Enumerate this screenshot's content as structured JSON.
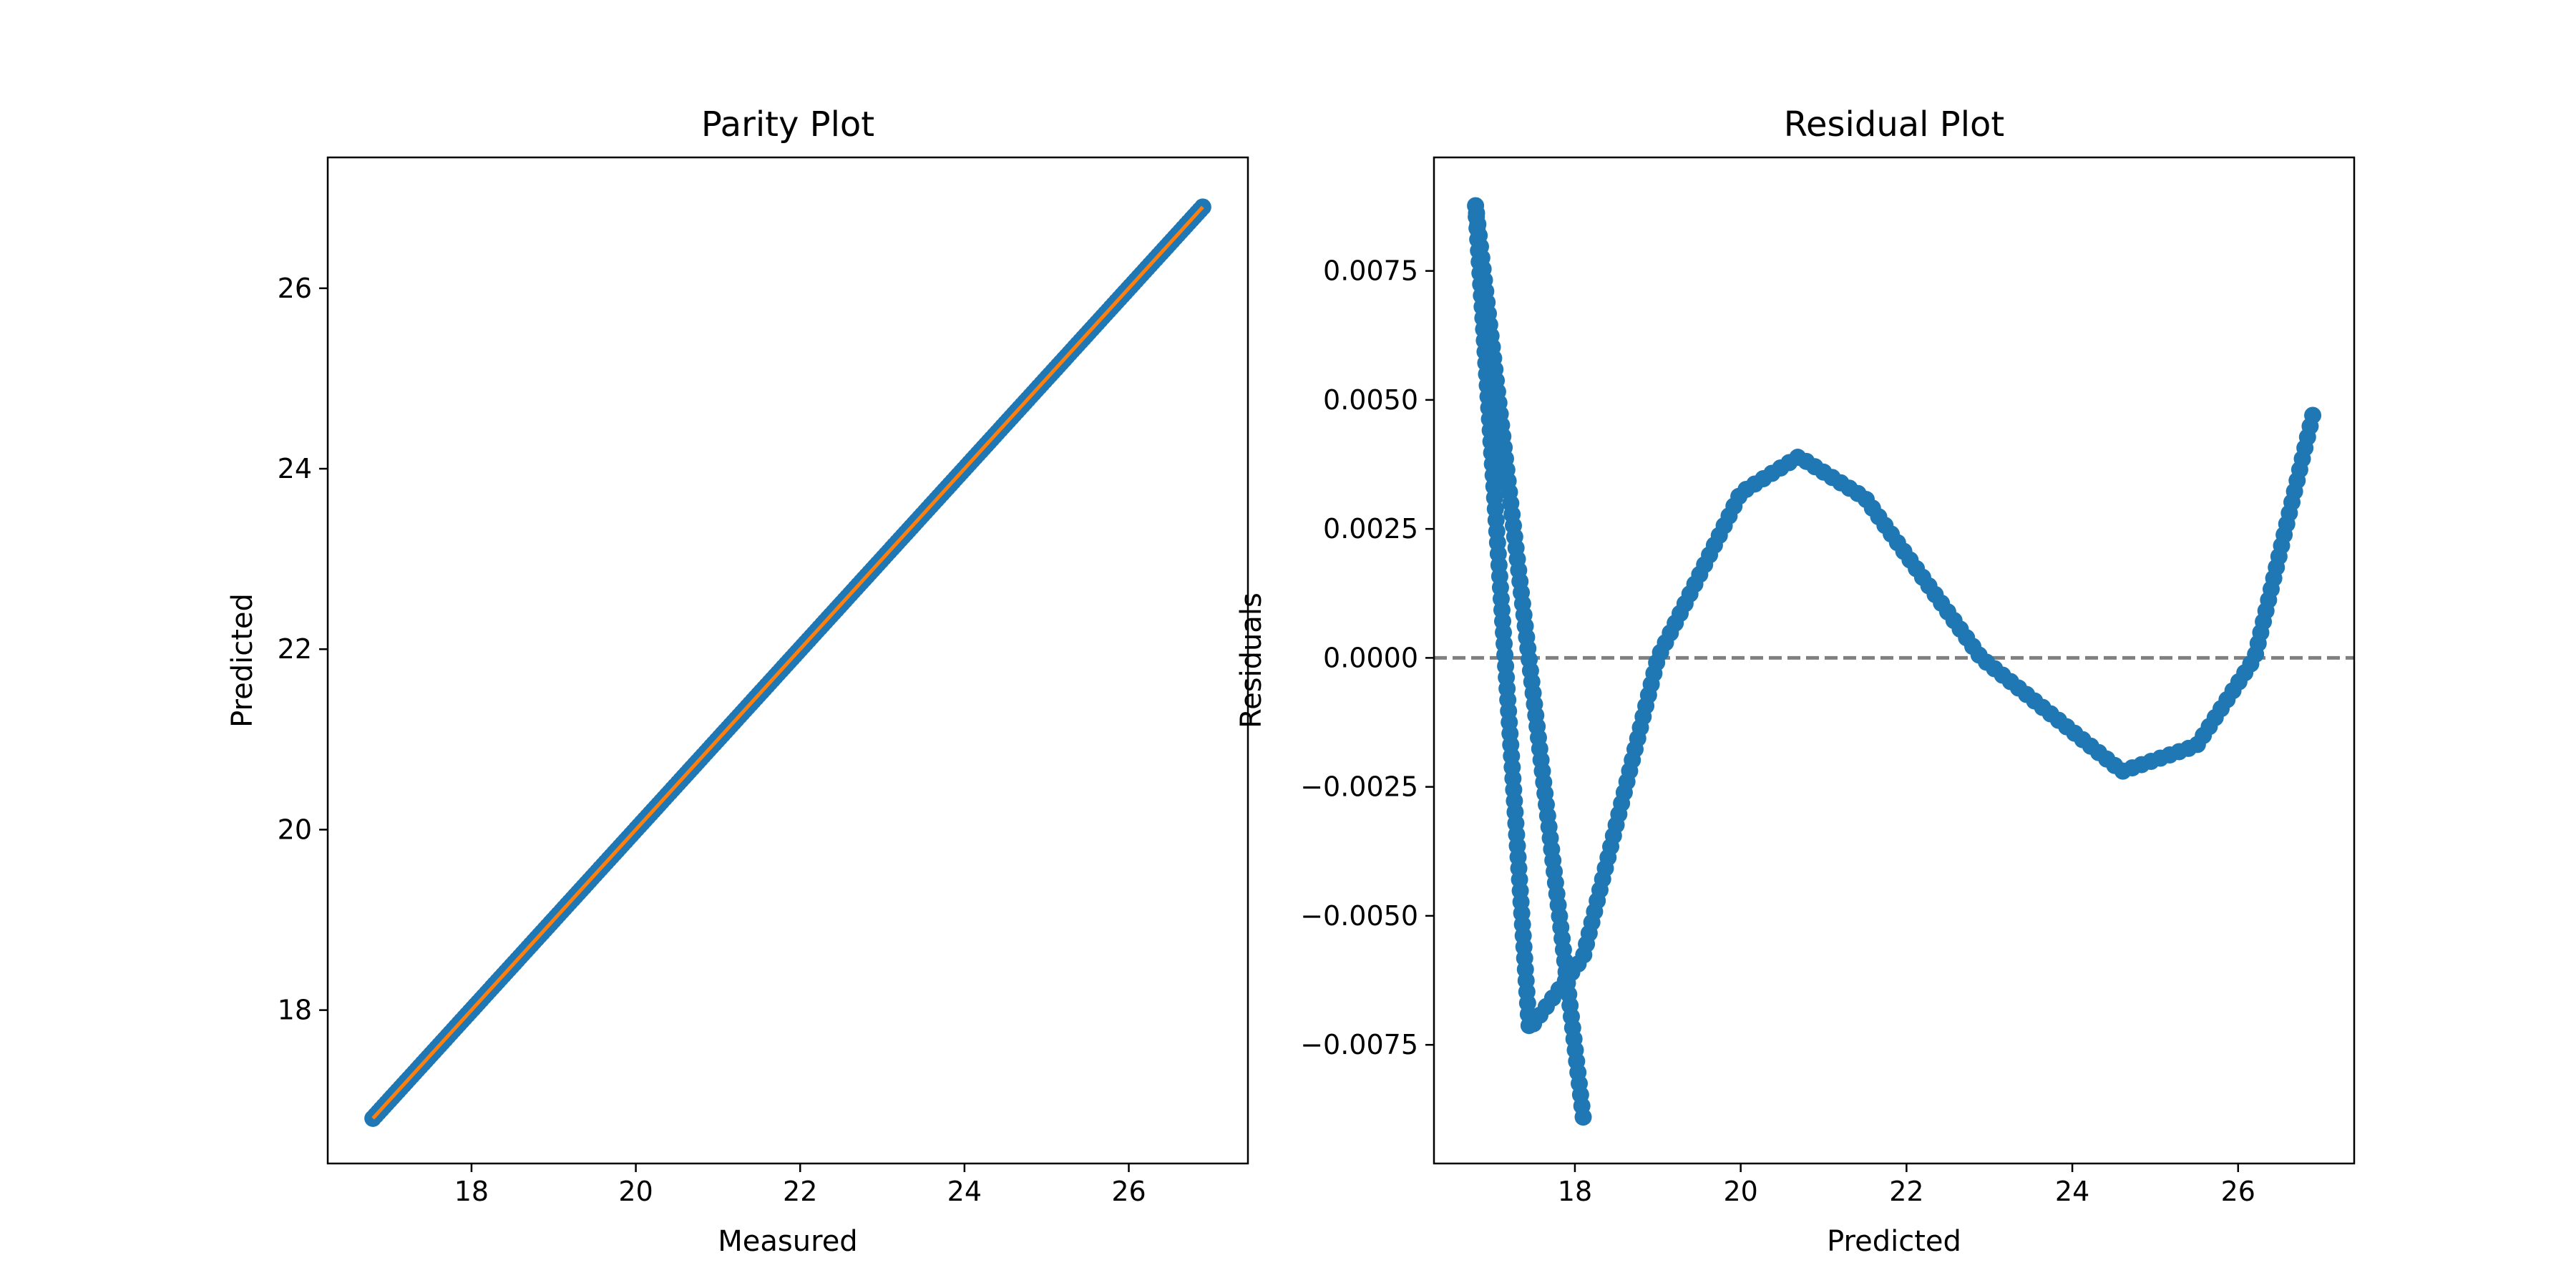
{
  "chart_data": [
    {
      "type": "scatter",
      "title": "Parity Plot",
      "xlabel": "Measured",
      "ylabel": "Predicted",
      "xlim": [
        16.25,
        27.45
      ],
      "ylim": [
        16.3,
        27.45
      ],
      "xticks": [
        18,
        20,
        22,
        24,
        26
      ],
      "xtick_labels": [
        "18",
        "20",
        "22",
        "24",
        "26"
      ],
      "yticks": [
        18,
        20,
        22,
        24,
        26
      ],
      "ytick_labels": [
        "18",
        "20",
        "22",
        "24",
        "26"
      ],
      "grid": false,
      "series": [
        {
          "kind": "scatter",
          "color": "#1f77b4",
          "x_range": [
            16.8,
            26.9
          ],
          "point_count": 300,
          "relation": "y = x"
        },
        {
          "kind": "line",
          "color": "#ff7f0e",
          "x": [
            16.8,
            26.9
          ],
          "y": [
            16.8,
            26.9
          ]
        }
      ]
    },
    {
      "type": "scatter",
      "title": "Residual Plot",
      "xlabel": "Predicted",
      "ylabel": "Residuals",
      "xlim": [
        16.3,
        27.4
      ],
      "ylim": [
        -0.0098,
        0.0097
      ],
      "xticks": [
        18,
        20,
        22,
        24,
        26
      ],
      "xtick_labels": [
        "18",
        "20",
        "22",
        "24",
        "26"
      ],
      "yticks": [
        -0.0075,
        -0.005,
        -0.0025,
        0.0,
        0.0025,
        0.005,
        0.0075
      ],
      "ytick_labels": [
        "−0.0075",
        "−0.0050",
        "−0.0025",
        "0.0000",
        "0.0025",
        "0.0050",
        "0.0075"
      ],
      "grid": false,
      "reference_line": {
        "y": 0.0,
        "style": "dashed",
        "color": "#808080"
      },
      "series": [
        {
          "kind": "scatter",
          "color": "#1f77b4",
          "point_count": 300,
          "polyline": [
            [
              18.1,
              -0.0089
            ],
            [
              16.8,
              0.0088
            ],
            [
              17.45,
              -0.0072
            ],
            [
              18.1,
              -0.0058
            ],
            [
              19.0,
              0.0
            ],
            [
              20.0,
              0.0032
            ],
            [
              20.7,
              0.0039
            ],
            [
              21.5,
              0.0031
            ],
            [
              22.9,
              0.0
            ],
            [
              24.6,
              -0.0022
            ],
            [
              25.5,
              -0.0017
            ],
            [
              26.2,
              0.0
            ],
            [
              26.9,
              0.0047
            ]
          ]
        }
      ]
    }
  ]
}
